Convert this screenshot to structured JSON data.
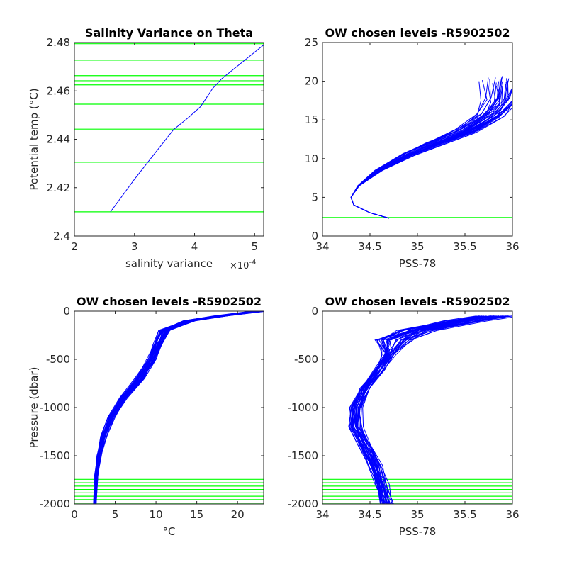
{
  "colors": {
    "profile": "#0000ff",
    "level": "#00ff00",
    "axis": "#262626"
  },
  "chart_data": [
    {
      "type": "line",
      "panel": "top-left",
      "title": "Salinity Variance on Theta",
      "xlabel": "salinity variance",
      "x_exponent": "×10",
      "x_exponent_power": "-4",
      "ylabel": "Potential temp (°C)",
      "xlim": [
        2,
        5.15
      ],
      "ylim": [
        2.4,
        2.48
      ],
      "xticks": [
        2,
        3,
        4,
        5
      ],
      "xtick_labels": [
        "2",
        "3",
        "4",
        "5"
      ],
      "yticks": [
        2.4,
        2.42,
        2.44,
        2.46,
        2.48
      ],
      "ytick_labels": [
        "2.4",
        "2.42",
        "2.44",
        "2.46",
        "2.48"
      ],
      "series": [
        {
          "x": [
            2.6,
            3.0,
            3.3,
            3.65,
            3.9,
            4.1,
            4.3,
            4.45,
            4.7,
            4.95,
            5.15
          ],
          "y": [
            2.41,
            2.4235,
            2.433,
            2.444,
            2.449,
            2.4535,
            2.461,
            2.465,
            2.47,
            2.475,
            2.479
          ]
        }
      ],
      "hlines": [
        2.41,
        2.4305,
        2.4442,
        2.4545,
        2.4625,
        2.4642,
        2.4663,
        2.4727,
        2.4795
      ]
    },
    {
      "type": "line",
      "panel": "top-right",
      "title": "OW chosen levels -R5902502",
      "xlabel": "PSS-78",
      "ylabel": "",
      "xlim": [
        34,
        36
      ],
      "ylim": [
        0,
        25
      ],
      "xticks": [
        34,
        34.5,
        35,
        35.5,
        36
      ],
      "xtick_labels": [
        "34",
        "34.5",
        "35",
        "35.5",
        "36"
      ],
      "yticks": [
        0,
        5,
        10,
        15,
        20,
        25
      ],
      "ytick_labels": [
        "0",
        "5",
        "10",
        "15",
        "20",
        "25"
      ],
      "series": [
        {
          "x": [
            34.7,
            34.5,
            34.33,
            34.3,
            34.38,
            34.6,
            34.9,
            35.2,
            35.5,
            35.75,
            35.88,
            35.9
          ],
          "y": [
            2.3,
            3.0,
            4.0,
            5.0,
            6.5,
            8.5,
            10.5,
            12.0,
            13.5,
            15.5,
            17.5,
            20.0
          ]
        }
      ],
      "hlines": [
        2.4
      ]
    },
    {
      "type": "line",
      "panel": "bottom-left",
      "title": "OW chosen levels -R5902502",
      "xlabel": "°C",
      "ylabel": "Pressure (dbar)",
      "xlim": [
        0,
        23.2
      ],
      "ylim": [
        -2000,
        0
      ],
      "xticks": [
        0,
        5,
        10,
        15,
        20
      ],
      "xtick_labels": [
        "0",
        "5",
        "10",
        "15",
        "20"
      ],
      "yticks": [
        -2000,
        -1500,
        -1000,
        -500,
        0
      ],
      "ytick_labels": [
        "-2000",
        "-1500",
        "-1000",
        "-500",
        "0"
      ],
      "series": [
        {
          "x": [
            22.5,
            18,
            14,
            11,
            10.2,
            9.5,
            8,
            6,
            4.5,
            3.6,
            3.0,
            2.7,
            2.5
          ],
          "y": [
            0,
            -50,
            -100,
            -200,
            -350,
            -500,
            -700,
            -900,
            -1100,
            -1300,
            -1500,
            -1700,
            -2000
          ]
        }
      ],
      "hlines": [
        -1745,
        -1780,
        -1815,
        -1850,
        -1885,
        -1920,
        -1955,
        -1990
      ]
    },
    {
      "type": "line",
      "panel": "bottom-right",
      "title": "OW chosen levels -R5902502",
      "xlabel": "PSS-78",
      "ylabel": "",
      "xlim": [
        34,
        36
      ],
      "ylim": [
        -2000,
        0
      ],
      "xticks": [
        34,
        34.5,
        35,
        35.5,
        36
      ],
      "xtick_labels": [
        "34",
        "34.5",
        "35",
        "35.5",
        "36"
      ],
      "yticks": [
        -2000,
        -1500,
        -1000,
        -500,
        0
      ],
      "ytick_labels": [
        "-2000",
        "-1500",
        "-1000",
        "-500",
        "0"
      ],
      "series": [
        {
          "x": [
            35.85,
            35.5,
            35.0,
            34.75,
            34.7,
            34.6,
            34.45,
            34.35,
            34.35,
            34.45,
            34.55,
            34.62,
            34.67
          ],
          "y": [
            -50,
            -100,
            -200,
            -300,
            -450,
            -600,
            -800,
            -1000,
            -1200,
            -1400,
            -1600,
            -1800,
            -2000
          ]
        }
      ],
      "hlines": [
        -1745,
        -1780,
        -1815,
        -1850,
        -1885,
        -1920,
        -1955,
        -1990
      ]
    }
  ]
}
